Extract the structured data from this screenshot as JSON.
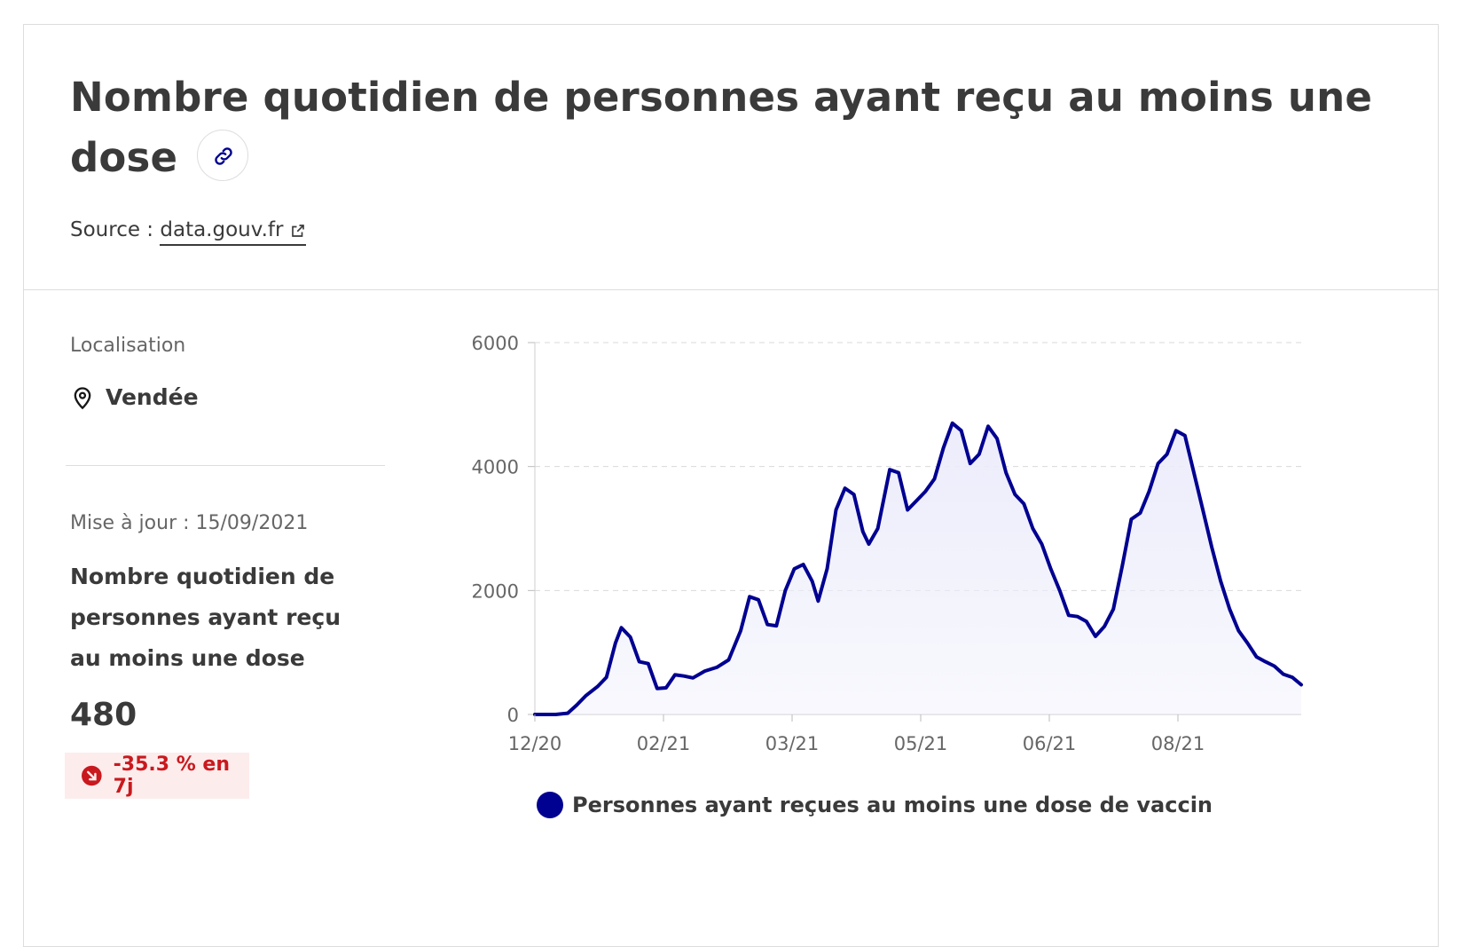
{
  "header": {
    "title": "Nombre quotidien de personnes ayant reçu au moins une dose",
    "source_prefix": "Source : ",
    "source_link": "data.gouv.fr"
  },
  "sidebar": {
    "location_label": "Localisation",
    "location_value": "Vendée",
    "updated": "Mise à jour : 15/09/2021",
    "kpi_title": "Nombre quotidien de personnes ayant reçu au moins une dose",
    "kpi_value": "480",
    "kpi_trend": "-35.3 % en 7j"
  },
  "colors": {
    "series": "#000091",
    "area": "#ececfb",
    "trend": "#c9191e",
    "trend_bg": "#fdecec"
  },
  "icons": [
    "link-icon",
    "external-link-icon",
    "location-pin-icon",
    "trend-down-icon"
  ],
  "chart_data": {
    "type": "area",
    "ylim": [
      0,
      6000
    ],
    "yticks": [
      0,
      2000,
      4000,
      6000
    ],
    "xtick_labels": [
      "12/20",
      "02/21",
      "03/21",
      "05/21",
      "06/21",
      "08/21"
    ],
    "grid": true,
    "legend_position": "bottom",
    "series": [
      {
        "name": "Personnes ayant reçues au moins une dose de vaccin",
        "points": [
          [
            "2020-12-27",
            0
          ],
          [
            "2021-01-03",
            0
          ],
          [
            "2021-01-07",
            20
          ],
          [
            "2021-01-10",
            150
          ],
          [
            "2021-01-13",
            300
          ],
          [
            "2021-01-17",
            450
          ],
          [
            "2021-01-20",
            600
          ],
          [
            "2021-01-23",
            1150
          ],
          [
            "2021-01-25",
            1400
          ],
          [
            "2021-01-28",
            1250
          ],
          [
            "2021-01-31",
            850
          ],
          [
            "2021-02-03",
            820
          ],
          [
            "2021-02-06",
            420
          ],
          [
            "2021-02-09",
            430
          ],
          [
            "2021-02-12",
            640
          ],
          [
            "2021-02-15",
            620
          ],
          [
            "2021-02-18",
            590
          ],
          [
            "2021-02-22",
            700
          ],
          [
            "2021-02-26",
            760
          ],
          [
            "2021-03-02",
            880
          ],
          [
            "2021-03-06",
            1350
          ],
          [
            "2021-03-09",
            1900
          ],
          [
            "2021-03-12",
            1850
          ],
          [
            "2021-03-15",
            1450
          ],
          [
            "2021-03-18",
            1430
          ],
          [
            "2021-03-21",
            2000
          ],
          [
            "2021-03-24",
            2350
          ],
          [
            "2021-03-27",
            2420
          ],
          [
            "2021-03-30",
            2150
          ],
          [
            "2021-04-01",
            1830
          ],
          [
            "2021-04-04",
            2350
          ],
          [
            "2021-04-07",
            3300
          ],
          [
            "2021-04-10",
            3650
          ],
          [
            "2021-04-13",
            3550
          ],
          [
            "2021-04-16",
            2950
          ],
          [
            "2021-04-18",
            2750
          ],
          [
            "2021-04-21",
            3000
          ],
          [
            "2021-04-25",
            3950
          ],
          [
            "2021-04-28",
            3900
          ],
          [
            "2021-05-01",
            3300
          ],
          [
            "2021-05-04",
            3450
          ],
          [
            "2021-05-07",
            3600
          ],
          [
            "2021-05-10",
            3800
          ],
          [
            "2021-05-13",
            4300
          ],
          [
            "2021-05-16",
            4700
          ],
          [
            "2021-05-19",
            4580
          ],
          [
            "2021-05-22",
            4050
          ],
          [
            "2021-05-25",
            4200
          ],
          [
            "2021-05-28",
            4650
          ],
          [
            "2021-05-31",
            4450
          ],
          [
            "2021-06-03",
            3900
          ],
          [
            "2021-06-06",
            3550
          ],
          [
            "2021-06-09",
            3400
          ],
          [
            "2021-06-12",
            3000
          ],
          [
            "2021-06-15",
            2750
          ],
          [
            "2021-06-18",
            2350
          ],
          [
            "2021-06-21",
            2000
          ],
          [
            "2021-06-24",
            1600
          ],
          [
            "2021-06-27",
            1580
          ],
          [
            "2021-06-30",
            1500
          ],
          [
            "2021-07-03",
            1260
          ],
          [
            "2021-07-06",
            1420
          ],
          [
            "2021-07-09",
            1700
          ],
          [
            "2021-07-12",
            2400
          ],
          [
            "2021-07-15",
            3150
          ],
          [
            "2021-07-18",
            3250
          ],
          [
            "2021-07-21",
            3600
          ],
          [
            "2021-07-24",
            4050
          ],
          [
            "2021-07-27",
            4200
          ],
          [
            "2021-07-30",
            4580
          ],
          [
            "2021-08-02",
            4500
          ],
          [
            "2021-08-05",
            3900
          ],
          [
            "2021-08-08",
            3300
          ],
          [
            "2021-08-11",
            2700
          ],
          [
            "2021-08-14",
            2150
          ],
          [
            "2021-08-17",
            1700
          ],
          [
            "2021-08-20",
            1350
          ],
          [
            "2021-08-23",
            1150
          ],
          [
            "2021-08-26",
            930
          ],
          [
            "2021-08-29",
            850
          ],
          [
            "2021-09-01",
            780
          ],
          [
            "2021-09-04",
            650
          ],
          [
            "2021-09-07",
            600
          ],
          [
            "2021-09-10",
            480
          ]
        ]
      }
    ]
  }
}
